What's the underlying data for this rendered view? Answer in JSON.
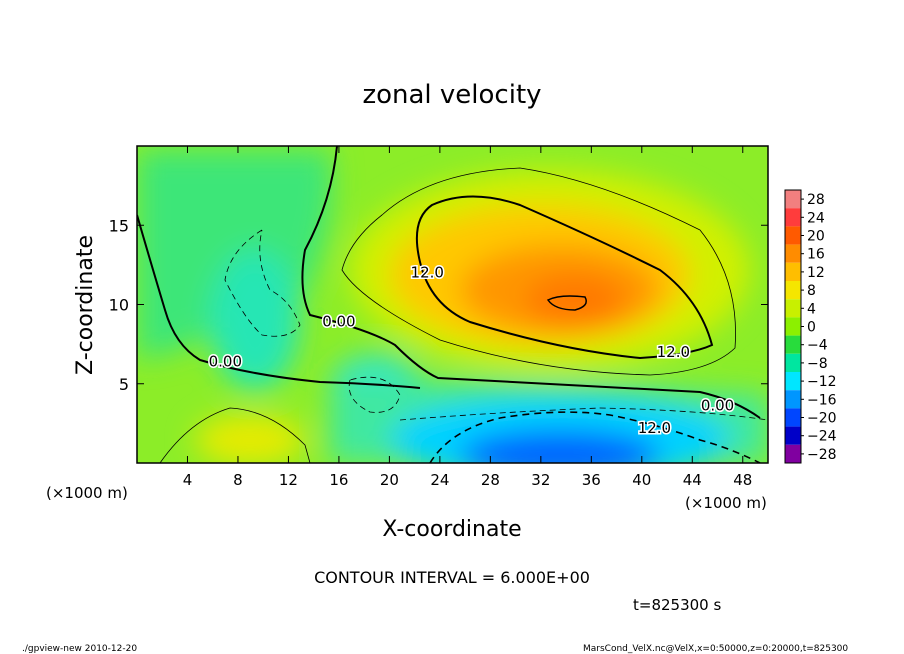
{
  "chart_data": {
    "type": "heatmap",
    "title": "zonal velocity",
    "xlabel": "X-coordinate",
    "ylabel": "Z-coordinate",
    "x_unit": "(×1000 m)",
    "x_ticks": [
      4,
      8,
      12,
      16,
      20,
      24,
      28,
      32,
      36,
      40,
      44,
      48
    ],
    "y_ticks": [
      5,
      10,
      15
    ],
    "xlim": [
      0,
      50
    ],
    "ylim": [
      0,
      20
    ],
    "colorbar": {
      "labels": [
        "28",
        "24",
        "20",
        "16",
        "12",
        "8",
        "4",
        "0",
        "−4",
        "−8",
        "−12",
        "−16",
        "−20",
        "−24",
        "−28"
      ],
      "colors": [
        "#f27f7f",
        "#ff3c3c",
        "#ff5a00",
        "#ff8c00",
        "#ffbe00",
        "#f5e600",
        "#c8f000",
        "#8cf000",
        "#28dc3c",
        "#00e6a0",
        "#00e6ff",
        "#0096ff",
        "#0046ff",
        "#0000c8",
        "#8000a0"
      ]
    },
    "contour_labels": [
      {
        "text": "12.0",
        "x": 23,
        "y": 11.7
      },
      {
        "text": "12.0",
        "x": 42.5,
        "y": 6.7
      },
      {
        "text": "0.00",
        "x": 16,
        "y": 8.6
      },
      {
        "text": "0.00",
        "x": 7,
        "y": 6.1
      },
      {
        "text": "0.00",
        "x": 46,
        "y": 3.3
      },
      {
        "text": "12.0",
        "x": 41,
        "y": 1.9
      }
    ],
    "contour_interval": "CONTOUR INTERVAL = 6.000E+00",
    "time": "t=825300 s",
    "grid": false
  },
  "footer": {
    "left": "./gpview-new  2010-12-20",
    "right": "MarsCond_VelX.nc@VelX,x=0:50000,z=0:20000,t=825300"
  }
}
